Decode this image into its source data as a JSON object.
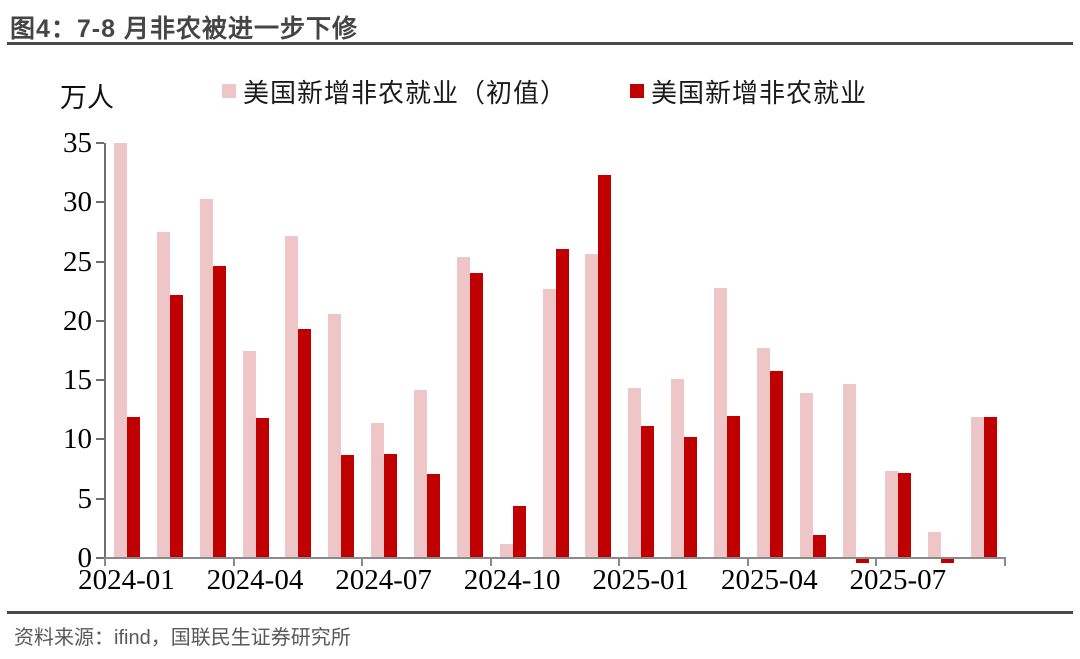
{
  "title": "图4：7-8 月非农被进一步下修",
  "unit_label": "万人",
  "legend": [
    {
      "label": "美国新增非农就业（初值）",
      "color": "#EEC6C7"
    },
    {
      "label": "美国新增非农就业",
      "color": "#C00000"
    }
  ],
  "source": "资料来源：ifind，国联民生证券研究所",
  "colors": {
    "initial_bar": "#EEC6C7",
    "revised_bar": "#C00000",
    "axis": "#8a8a8a",
    "title_text": "#454545",
    "source_text": "#595959"
  },
  "chart_data": {
    "type": "bar",
    "title": "图4：7-8 月非农被进一步下修",
    "ylabel": "万人",
    "ylim": [
      0,
      35
    ],
    "yticks": [
      0,
      5,
      10,
      15,
      20,
      25,
      30,
      35
    ],
    "grid": false,
    "legend_position": "top",
    "categories": [
      "2024-01",
      "2024-02",
      "2024-03",
      "2024-04",
      "2024-05",
      "2024-06",
      "2024-07",
      "2024-08",
      "2024-09",
      "2024-10",
      "2024-11",
      "2024-12",
      "2025-01",
      "2025-02",
      "2025-03",
      "2025-04",
      "2025-05",
      "2025-06",
      "2025-07",
      "2025-08",
      "2025-09"
    ],
    "xtick_labels": [
      "2024-01",
      "2024-04",
      "2024-07",
      "2024-10",
      "2025-01",
      "2025-04",
      "2025-07"
    ],
    "xtick_every": 3,
    "series": [
      {
        "name": "美国新增非农就业（初值）",
        "color": "#EEC6C7",
        "values": [
          35.3,
          27.5,
          30.3,
          17.5,
          27.2,
          20.6,
          11.4,
          14.2,
          25.4,
          1.2,
          22.7,
          25.6,
          14.3,
          15.1,
          22.8,
          17.7,
          13.9,
          14.7,
          7.3,
          2.2,
          11.9
        ]
      },
      {
        "name": "美国新增非农就业",
        "color": "#C00000",
        "values": [
          11.9,
          22.2,
          24.6,
          11.8,
          19.3,
          8.7,
          8.8,
          7.1,
          24.0,
          4.4,
          26.1,
          32.3,
          11.1,
          10.2,
          12.0,
          15.8,
          1.9,
          -0.4,
          7.2,
          -0.4,
          11.9
        ]
      }
    ]
  }
}
